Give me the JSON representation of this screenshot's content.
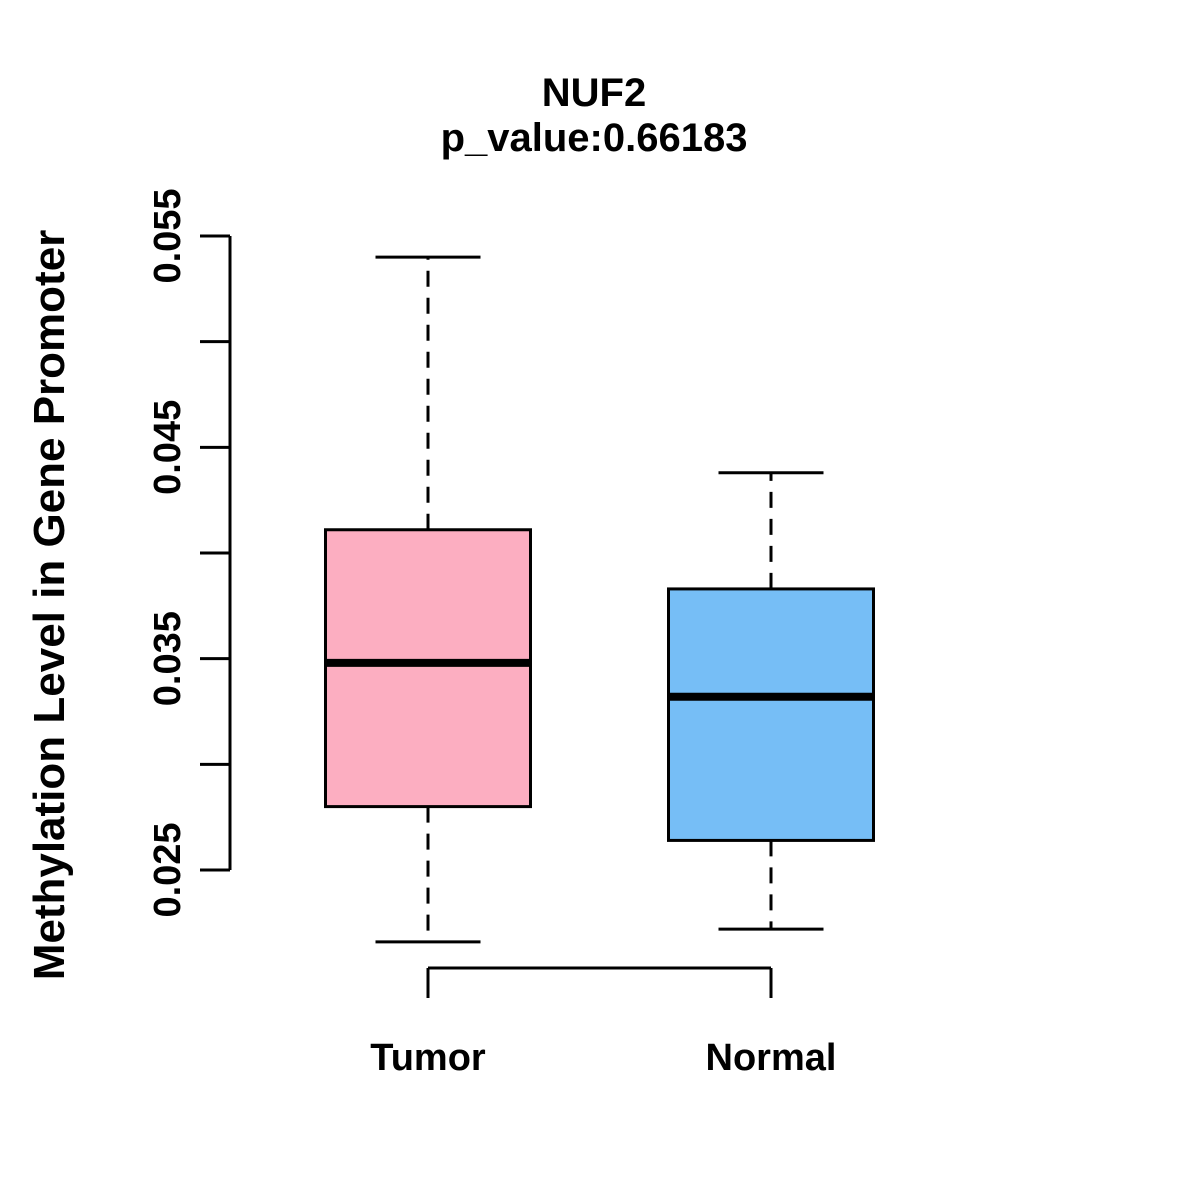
{
  "chart_data": {
    "type": "boxplot",
    "title": "NUF2",
    "subtitle": "p_value:0.66183",
    "ylabel": "Methylation Level in Gene Promoter",
    "xlabel": "",
    "categories": [
      "Tumor",
      "Normal"
    ],
    "series": [
      {
        "name": "Tumor",
        "color": "#FCAEC1",
        "whisker_low": 0.0216,
        "q1": 0.028,
        "median": 0.0348,
        "q3": 0.0411,
        "whisker_high": 0.054
      },
      {
        "name": "Normal",
        "color": "#76BEF6",
        "whisker_low": 0.0222,
        "q1": 0.0264,
        "median": 0.0332,
        "q3": 0.0383,
        "whisker_high": 0.0438
      }
    ],
    "ylim": [
      0.025,
      0.055
    ],
    "yticks": [
      {
        "value": 0.025,
        "label": "0.025"
      },
      {
        "value": 0.03,
        "label": ""
      },
      {
        "value": 0.035,
        "label": "0.035"
      },
      {
        "value": 0.04,
        "label": ""
      },
      {
        "value": 0.045,
        "label": "0.045"
      },
      {
        "value": 0.05,
        "label": ""
      },
      {
        "value": 0.055,
        "label": "0.055"
      }
    ],
    "grid": false,
    "legend": false,
    "outliers": [],
    "colors": {
      "box_tumor": "#FCAEC1",
      "box_normal": "#76BEF6",
      "line": "#000000",
      "background": "#FFFFFF"
    }
  }
}
